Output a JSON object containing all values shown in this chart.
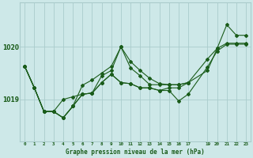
{
  "title": "Graphe pression niveau de la mer (hPa)",
  "background_color": "#cde8e8",
  "grid_color": "#aacccc",
  "line_color": "#1a5c1a",
  "xlim": [
    -0.5,
    23.5
  ],
  "ylim": [
    1018.2,
    1020.85
  ],
  "yticks": [
    1019,
    1020
  ],
  "xticks": [
    0,
    1,
    2,
    3,
    4,
    5,
    6,
    7,
    8,
    9,
    10,
    11,
    12,
    13,
    14,
    15,
    16,
    17,
    19,
    20,
    21,
    22,
    23
  ],
  "series": [
    {
      "x": [
        0,
        1,
        2,
        3,
        4,
        5,
        6,
        7,
        8,
        9,
        10,
        11,
        12,
        13,
        14,
        15,
        16,
        17
      ],
      "y": [
        1019.63,
        1019.22,
        1018.77,
        1018.77,
        1018.65,
        1018.87,
        1019.27,
        1019.37,
        1019.5,
        1019.63,
        1020.0,
        1019.72,
        1019.55,
        1019.4,
        1019.3,
        1019.28,
        1019.28,
        1019.32
      ]
    },
    {
      "x": [
        0,
        1,
        2,
        3,
        4,
        5,
        6,
        7,
        8,
        9,
        10,
        11,
        12,
        13,
        14,
        15,
        16,
        17,
        19,
        20,
        21,
        22,
        23
      ],
      "y": [
        1019.63,
        1019.22,
        1018.77,
        1018.77,
        1018.65,
        1018.87,
        1019.1,
        1019.12,
        1019.32,
        1019.48,
        1019.32,
        1019.3,
        1019.22,
        1019.22,
        1019.17,
        1019.17,
        1018.97,
        1019.1,
        1019.62,
        1019.92,
        1020.05,
        1020.05,
        1020.05
      ]
    },
    {
      "x": [
        0,
        1,
        2,
        3,
        4,
        5,
        6,
        7,
        8,
        9,
        10,
        11,
        12,
        13,
        14,
        15,
        16,
        17,
        19,
        20,
        21,
        22,
        23
      ],
      "y": [
        1019.63,
        1019.22,
        1018.77,
        1018.77,
        1018.65,
        1018.87,
        1019.1,
        1019.12,
        1019.32,
        1019.48,
        1019.32,
        1019.3,
        1019.22,
        1019.22,
        1019.17,
        1019.22,
        1019.22,
        1019.32,
        1019.77,
        1019.97,
        1020.42,
        1020.22,
        1020.22
      ]
    },
    {
      "x": [
        0,
        1,
        2,
        3,
        4,
        5,
        6,
        7,
        8,
        9,
        10,
        11,
        12,
        13,
        14,
        15,
        16,
        17,
        19,
        20,
        21,
        22,
        23
      ],
      "y": [
        1019.63,
        1019.22,
        1018.77,
        1018.77,
        1019.0,
        1019.05,
        1019.1,
        1019.12,
        1019.45,
        1019.55,
        1020.0,
        1019.6,
        1019.45,
        1019.28,
        1019.28,
        1019.28,
        1019.28,
        1019.32,
        1019.55,
        1019.97,
        1020.07,
        1020.07,
        1020.07
      ]
    }
  ]
}
